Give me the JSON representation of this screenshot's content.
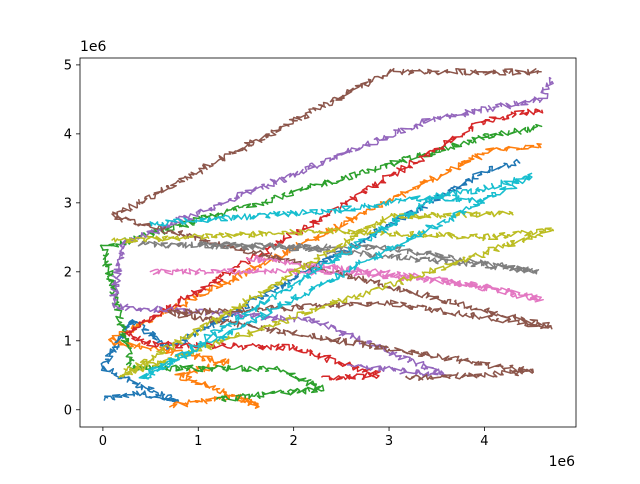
{
  "chart_data": {
    "type": "line",
    "title": "",
    "xlabel": "",
    "ylabel": "",
    "x_offset_text": "1e6",
    "y_offset_text": "1e6",
    "xlim": [
      -0.24,
      4.96
    ],
    "ylim": [
      -0.25,
      5.1
    ],
    "x_ticks": [
      0,
      1,
      2,
      3,
      4
    ],
    "x_tick_labels": [
      "0",
      "1",
      "2",
      "3",
      "4"
    ],
    "y_ticks": [
      0,
      1,
      2,
      3,
      4,
      5
    ],
    "y_tick_labels": [
      "0",
      "1",
      "2",
      "3",
      "4",
      "5"
    ],
    "grid": false,
    "legend": "none",
    "palette": [
      "#1f77b4",
      "#ff7f0e",
      "#2ca02c",
      "#d62728",
      "#9467bd",
      "#8c564b",
      "#e377c2",
      "#7f7f7f",
      "#bcbd22",
      "#17becf"
    ],
    "series": [
      {
        "color": "#1f77b4",
        "trend": [
          [
            0.0,
            0.15
          ],
          [
            0.4,
            0.25
          ],
          [
            0.8,
            0.1
          ],
          [
            0.0,
            0.6
          ],
          [
            0.3,
            1.3
          ],
          [
            0.7,
            0.9
          ],
          [
            4.0,
            3.45
          ],
          [
            4.35,
            3.6
          ]
        ]
      },
      {
        "color": "#ff7f0e",
        "trend": [
          [
            0.7,
            0.05
          ],
          [
            1.4,
            0.2
          ],
          [
            1.65,
            0.05
          ],
          [
            0.8,
            0.5
          ],
          [
            1.3,
            0.7
          ],
          [
            0.05,
            1.0
          ],
          [
            4.05,
            3.75
          ],
          [
            4.6,
            3.85
          ]
        ]
      },
      {
        "color": "#2ca02c",
        "trend": [
          [
            1.2,
            0.15
          ],
          [
            2.3,
            0.3
          ],
          [
            1.8,
            0.6
          ],
          [
            0.3,
            0.6
          ],
          [
            0.0,
            2.35
          ],
          [
            4.0,
            3.95
          ],
          [
            4.6,
            4.1
          ]
        ]
      },
      {
        "color": "#d62728",
        "trend": [
          [
            2.3,
            0.45
          ],
          [
            2.9,
            0.5
          ],
          [
            2.0,
            0.9
          ],
          [
            0.5,
            0.95
          ],
          [
            0.25,
            1.1
          ],
          [
            4.0,
            4.2
          ],
          [
            4.6,
            4.35
          ]
        ]
      },
      {
        "color": "#9467bd",
        "trend": [
          [
            2.6,
            0.65
          ],
          [
            3.6,
            0.5
          ],
          [
            2.2,
            1.3
          ],
          [
            0.1,
            1.5
          ],
          [
            0.2,
            2.4
          ],
          [
            3.4,
            4.2
          ],
          [
            4.6,
            4.5
          ],
          [
            4.7,
            4.8
          ]
        ]
      },
      {
        "color": "#8c564b",
        "trend": [
          [
            3.2,
            0.45
          ],
          [
            4.5,
            0.55
          ],
          [
            0.7,
            1.4
          ],
          [
            3.0,
            1.55
          ],
          [
            4.7,
            1.2
          ],
          [
            0.1,
            2.8
          ],
          [
            3.0,
            4.9
          ],
          [
            4.6,
            4.9
          ]
        ]
      },
      {
        "color": "#e377c2",
        "trend": [
          [
            0.5,
            2.0
          ],
          [
            2.5,
            2.0
          ],
          [
            4.0,
            1.8
          ],
          [
            4.6,
            1.6
          ],
          [
            3.5,
            1.9
          ],
          [
            1.5,
            2.2
          ]
        ]
      },
      {
        "color": "#7f7f7f",
        "trend": [
          [
            0.4,
            2.4
          ],
          [
            2.0,
            2.35
          ],
          [
            4.0,
            2.1
          ],
          [
            4.55,
            2.0
          ],
          [
            3.0,
            2.35
          ],
          [
            1.0,
            2.4
          ]
        ]
      },
      {
        "color": "#bcbd22",
        "trend": [
          [
            0.1,
            2.45
          ],
          [
            2.5,
            2.6
          ],
          [
            4.0,
            2.5
          ],
          [
            4.7,
            2.6
          ],
          [
            0.2,
            0.5
          ],
          [
            3.0,
            2.8
          ],
          [
            4.3,
            2.85
          ]
        ]
      },
      {
        "color": "#17becf",
        "trend": [
          [
            0.5,
            2.7
          ],
          [
            2.5,
            2.9
          ],
          [
            4.0,
            3.2
          ],
          [
            4.5,
            3.4
          ],
          [
            0.4,
            0.45
          ],
          [
            3.5,
            3.1
          ],
          [
            4.0,
            3.0
          ]
        ]
      }
    ]
  }
}
